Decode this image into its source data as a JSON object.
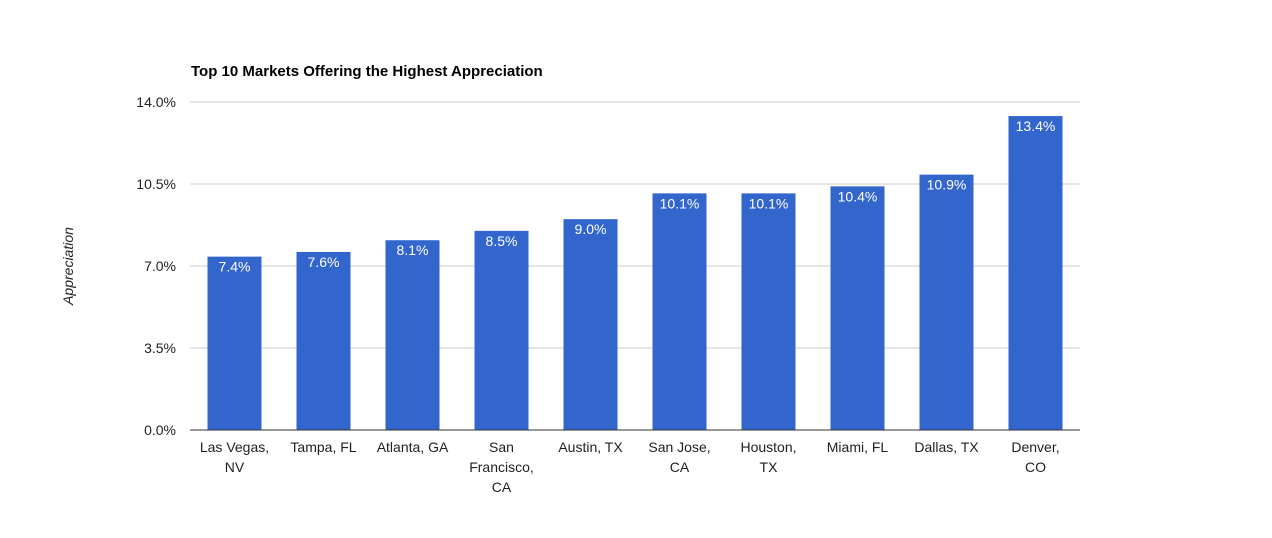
{
  "chart_data": {
    "type": "bar",
    "title": "Top 10 Markets Offering the Highest Appreciation",
    "xlabel": "",
    "ylabel": "Appreciation",
    "categories": [
      "Las Vegas, NV",
      "Tampa, FL",
      "Atlanta, GA",
      "San Francisco, CA",
      "Austin, TX",
      "San Jose, CA",
      "Houston, TX",
      "Miami, FL",
      "Dallas, TX",
      "Denver, CO"
    ],
    "category_label_lines": [
      [
        "Las Vegas,",
        "NV"
      ],
      [
        "Tampa, FL"
      ],
      [
        "Atlanta, GA"
      ],
      [
        "San",
        "Francisco,",
        "CA"
      ],
      [
        "Austin, TX"
      ],
      [
        "San Jose,",
        "CA"
      ],
      [
        "Houston,",
        "TX"
      ],
      [
        "Miami, FL"
      ],
      [
        "Dallas, TX"
      ],
      [
        "Denver,",
        "CO"
      ]
    ],
    "values": [
      7.4,
      7.6,
      8.1,
      8.5,
      9.0,
      10.1,
      10.1,
      10.4,
      10.9,
      13.4
    ],
    "data_labels": [
      "7.4%",
      "7.6%",
      "8.1%",
      "8.5%",
      "9.0%",
      "10.1%",
      "10.1%",
      "10.4%",
      "10.9%",
      "13.4%"
    ],
    "ylim": [
      0,
      14
    ],
    "y_ticks": [
      0,
      3.5,
      7,
      10.5,
      14
    ],
    "y_tick_labels": [
      "0.0%",
      "3.5%",
      "7.0%",
      "10.5%",
      "14.0%"
    ],
    "grid": true,
    "legend": "none",
    "colors": {
      "bar": "#3366cc",
      "grid": "#cccccc",
      "axis": "#333333",
      "text": "#222222",
      "data_label": "#ffffff"
    }
  }
}
